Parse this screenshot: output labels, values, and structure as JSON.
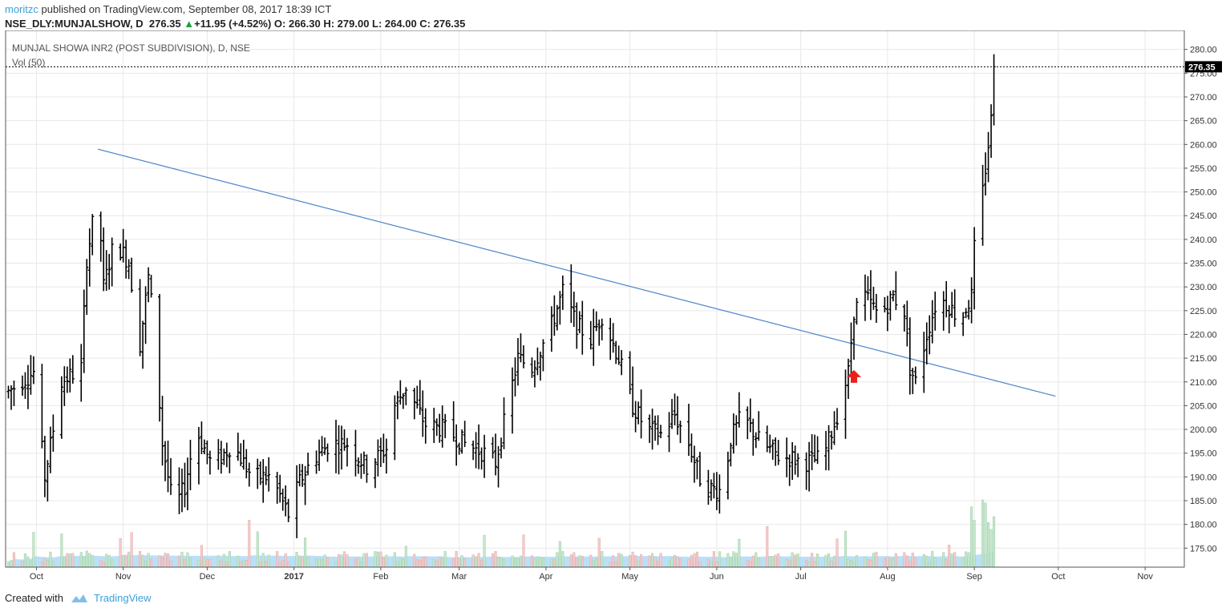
{
  "header": {
    "author": "moritzc",
    "published_text": " published on TradingView.com, September 08, 2017 18:39 ICT",
    "symbol": "NSE_DLY:MUNJALSHOW, D",
    "last": "276.35",
    "change": "+11.95 (+4.52%)",
    "ohlc": "O: 266.30 H: 279.00 L: 264.00 C: 276.35",
    "up_arrow": "▲"
  },
  "footer": {
    "created_with": "Created with",
    "brand": "TradingView",
    "brand_icon": "tradingview-logo-icon"
  },
  "colors": {
    "bar": "#000000",
    "trendline": "#4a86c8",
    "vol_up": "#c6e6cc",
    "vol_down": "#f2cccc",
    "vol_ma_fill": "#a9d8f5",
    "arrow": "#e8211c",
    "grid": "#e8e8e8"
  },
  "chart_data": {
    "type": "ohlc",
    "title": "MUNJAL SHOWA INR2 (POST SUBDIVISION), D, NSE",
    "volume_label": "Vol (50)",
    "last_price_label": "276.35",
    "last_price": 276.35,
    "y_range": [
      171,
      284
    ],
    "y_ticks": [
      175,
      180,
      185,
      190,
      195,
      200,
      205,
      210,
      215,
      220,
      225,
      230,
      235,
      240,
      245,
      250,
      255,
      260,
      265,
      270,
      275,
      280
    ],
    "y_tick_labels": [
      "175.00",
      "180.00",
      "185.00",
      "190.00",
      "195.00",
      "200.00",
      "205.00",
      "210.00",
      "215.00",
      "220.00",
      "225.00",
      "230.00",
      "235.00",
      "240.00",
      "245.00",
      "250.00",
      "255.00",
      "260.00",
      "265.00",
      "270.00",
      "275.00",
      "280.00"
    ],
    "x_range": [
      "2016-09-20",
      "2017-11-15"
    ],
    "x_ticks": [
      "2016-10-01",
      "2016-11-01",
      "2016-12-01",
      "2017-01-01",
      "2017-02-01",
      "2017-03-01",
      "2017-04-01",
      "2017-05-01",
      "2017-06-01",
      "2017-07-01",
      "2017-08-01",
      "2017-09-01",
      "2017-10-01",
      "2017-11-01"
    ],
    "x_tick_labels": [
      "Oct",
      "Nov",
      "Dec",
      "2017",
      "Feb",
      "Mar",
      "Apr",
      "May",
      "Jun",
      "Jul",
      "Aug",
      "Sep",
      "Oct",
      "Nov"
    ],
    "grid": true,
    "trendline": {
      "start": [
        "2016-10-23",
        259
      ],
      "end": [
        "2017-09-30",
        207
      ]
    },
    "annotation": {
      "type": "arrow-up",
      "date": "2017-07-20",
      "price": 211
    },
    "anchors": [
      [
        "2016-09-21",
        208
      ],
      [
        "2016-09-30",
        212
      ],
      [
        "2016-10-04",
        190
      ],
      [
        "2016-10-10",
        210
      ],
      [
        "2016-10-17",
        213
      ],
      [
        "2016-10-19",
        236
      ],
      [
        "2016-10-23",
        250
      ],
      [
        "2016-10-25",
        230
      ],
      [
        "2016-10-29",
        240
      ],
      [
        "2016-11-03",
        235
      ],
      [
        "2016-11-07",
        218
      ],
      [
        "2016-11-10",
        232
      ],
      [
        "2016-11-12",
        222
      ],
      [
        "2016-11-15",
        197
      ],
      [
        "2016-11-19",
        183
      ],
      [
        "2016-11-23",
        188
      ],
      [
        "2016-11-27",
        200
      ],
      [
        "2016-12-03",
        192
      ],
      [
        "2016-12-10",
        197
      ],
      [
        "2016-12-17",
        190
      ],
      [
        "2016-12-24",
        190
      ],
      [
        "2016-12-30",
        182
      ],
      [
        "2017-01-03",
        189
      ],
      [
        "2017-01-08",
        194
      ],
      [
        "2017-01-14",
        197
      ],
      [
        "2017-01-20",
        197
      ],
      [
        "2017-01-27",
        192
      ],
      [
        "2017-02-03",
        196
      ],
      [
        "2017-02-06",
        205
      ],
      [
        "2017-02-10",
        209
      ],
      [
        "2017-02-17",
        201
      ],
      [
        "2017-02-24",
        200
      ],
      [
        "2017-03-03",
        197
      ],
      [
        "2017-03-10",
        195
      ],
      [
        "2017-03-14",
        193
      ],
      [
        "2017-03-18",
        204
      ],
      [
        "2017-03-22",
        215
      ],
      [
        "2017-03-27",
        213
      ],
      [
        "2017-04-03",
        222
      ],
      [
        "2017-04-07",
        229
      ],
      [
        "2017-04-12",
        222
      ],
      [
        "2017-04-17",
        219
      ],
      [
        "2017-04-21",
        224
      ],
      [
        "2017-04-27",
        215
      ],
      [
        "2017-05-02",
        205
      ],
      [
        "2017-05-07",
        200
      ],
      [
        "2017-05-12",
        199
      ],
      [
        "2017-05-17",
        203
      ],
      [
        "2017-05-22",
        197
      ],
      [
        "2017-05-27",
        188
      ],
      [
        "2017-06-03",
        187
      ],
      [
        "2017-06-06",
        198
      ],
      [
        "2017-06-10",
        203
      ],
      [
        "2017-06-17",
        197
      ],
      [
        "2017-06-24",
        194
      ],
      [
        "2017-06-28",
        194
      ],
      [
        "2017-07-02",
        193
      ],
      [
        "2017-07-09",
        194
      ],
      [
        "2017-07-14",
        203
      ],
      [
        "2017-07-18",
        212
      ],
      [
        "2017-07-20",
        225
      ],
      [
        "2017-07-24",
        228
      ],
      [
        "2017-07-29",
        224
      ],
      [
        "2017-08-03",
        228
      ],
      [
        "2017-08-07",
        225
      ],
      [
        "2017-08-09",
        213
      ],
      [
        "2017-08-11",
        210
      ],
      [
        "2017-08-15",
        220
      ],
      [
        "2017-08-19",
        228
      ],
      [
        "2017-08-23",
        226
      ],
      [
        "2017-08-27",
        223
      ],
      [
        "2017-08-31",
        228
      ],
      [
        "2017-09-01",
        238
      ],
      [
        "2017-09-04",
        250
      ],
      [
        "2017-09-07",
        265
      ],
      [
        "2017-09-08",
        276
      ]
    ]
  }
}
